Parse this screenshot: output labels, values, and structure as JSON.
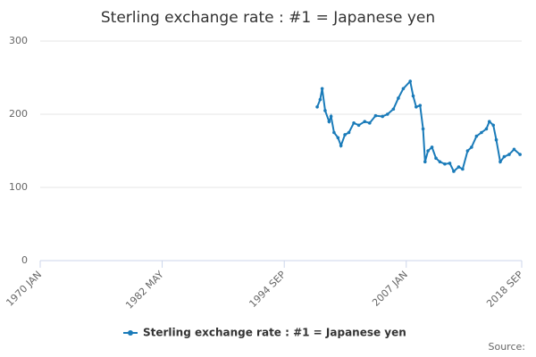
{
  "chart_data": {
    "type": "line",
    "title": "Sterling exchange rate : #1 = Japanese yen",
    "x": [
      1998.0,
      1998.3,
      1998.5,
      1998.8,
      1999.2,
      1999.4,
      1999.7,
      2000.1,
      2000.4,
      2000.8,
      2001.2,
      2001.7,
      2002.2,
      2002.8,
      2003.3,
      2003.9,
      2004.6,
      2005.1,
      2005.7,
      2006.2,
      2006.7,
      2007.4,
      2007.7,
      2008.0,
      2008.4,
      2008.7,
      2008.9,
      2009.2,
      2009.6,
      2010.0,
      2010.4,
      2010.9,
      2011.4,
      2011.8,
      2012.3,
      2012.7,
      2013.2,
      2013.6,
      2014.1,
      2014.6,
      2015.1,
      2015.4,
      2015.8,
      2016.1,
      2016.5,
      2016.9,
      2017.4,
      2017.9,
      2018.5
    ],
    "series": [
      {
        "name": "Sterling exchange rate : #1 = Japanese yen",
        "color": "#1a7bb9",
        "values": [
          210,
          220,
          235,
          205,
          190,
          197,
          175,
          168,
          157,
          172,
          175,
          188,
          185,
          190,
          188,
          198,
          197,
          200,
          207,
          222,
          235,
          245,
          225,
          210,
          212,
          180,
          135,
          150,
          155,
          140,
          135,
          132,
          133,
          122,
          128,
          125,
          150,
          155,
          170,
          175,
          180,
          190,
          185,
          165,
          135,
          142,
          145,
          152,
          145
        ]
      }
    ],
    "xlim": [
      1970.0,
      2018.67
    ],
    "xticks": [
      {
        "value": 1970.0,
        "label": "1970 JAN"
      },
      {
        "value": 1982.33,
        "label": "1982 MAY"
      },
      {
        "value": 1994.67,
        "label": "1994 SEP"
      },
      {
        "value": 2007.0,
        "label": "2007 JAN"
      },
      {
        "value": 2018.67,
        "label": "2018 SEP"
      }
    ],
    "ylim": [
      0,
      300
    ],
    "yticks": [
      0,
      100,
      200,
      300
    ],
    "grid": true,
    "source": "Source:"
  }
}
